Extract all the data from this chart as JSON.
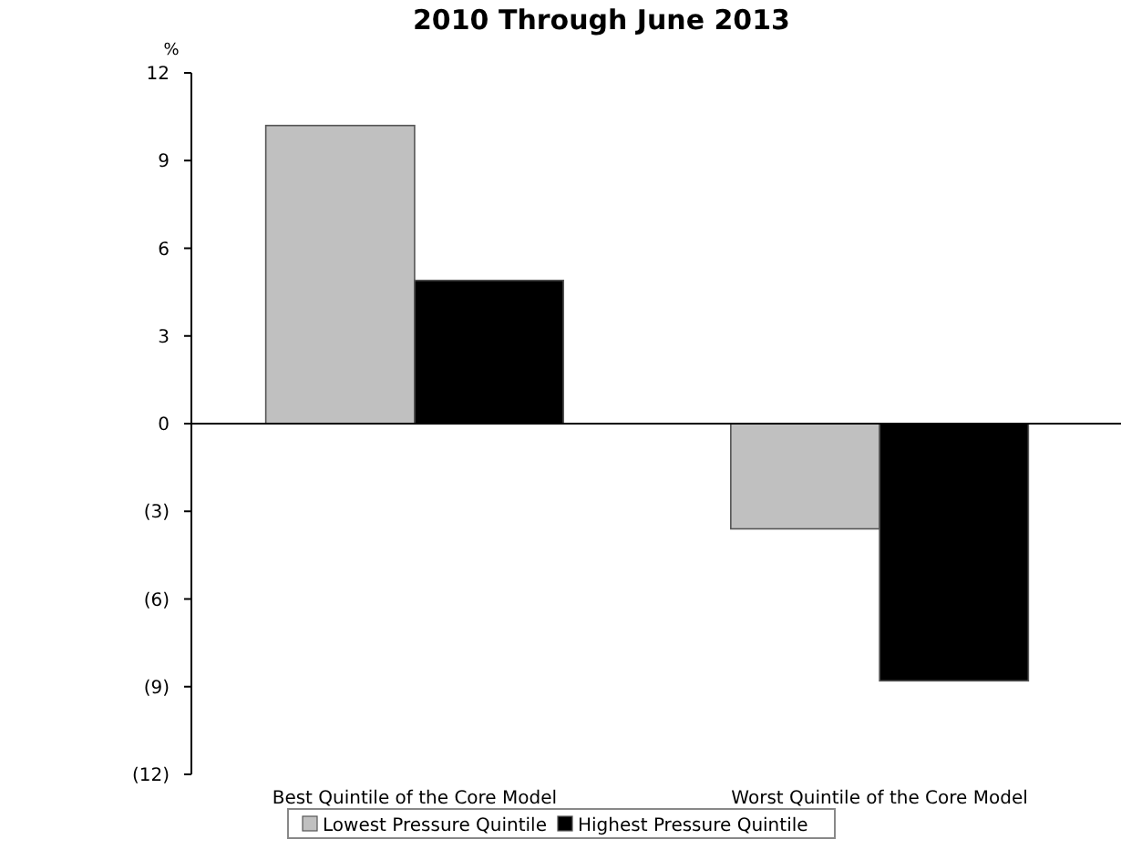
{
  "chart_data": {
    "type": "bar",
    "title": "2010 Through June 2013",
    "ylabel": "%",
    "categories": [
      "Best Quintile of the Core Model",
      "Worst Quintile of the Core Model"
    ],
    "series": [
      {
        "name": "Lowest Pressure Quintile",
        "color": "#c0c0c0",
        "values": [
          10.2,
          -3.6
        ]
      },
      {
        "name": "Highest Pressure Quintile",
        "color": "#000000",
        "values": [
          4.9,
          -8.8
        ]
      }
    ],
    "ylim": [
      -12,
      12
    ],
    "yticks": [
      {
        "value": -12,
        "label": "(12)"
      },
      {
        "value": -9,
        "label": "(9)"
      },
      {
        "value": -6,
        "label": "(6)"
      },
      {
        "value": -3,
        "label": "(3)"
      },
      0,
      3,
      6,
      9,
      12
    ],
    "legend": "bottom"
  }
}
